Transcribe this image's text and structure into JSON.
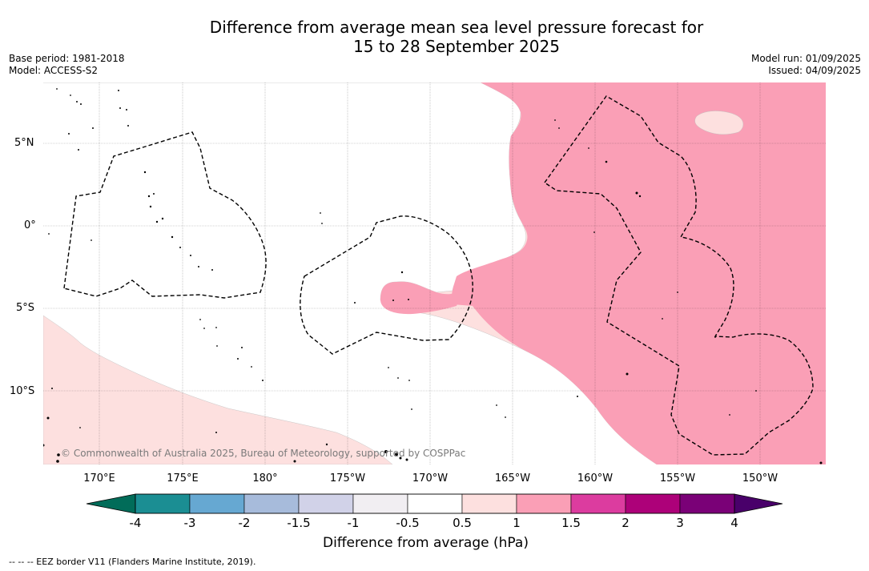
{
  "header": {
    "title_line1": "Difference from average mean sea level pressure forecast for",
    "title_line2": "15 to 28 September 2025",
    "base_period": "Base period: 1981-2018",
    "model": "Model: ACCESS-S2",
    "model_run": "Model run: 01/09/2025",
    "issued": "Issued: 04/09/2025"
  },
  "map": {
    "latitude_labels": [
      "5°N",
      "0°",
      "5°S",
      "10°S"
    ],
    "longitude_labels": [
      "170°E",
      "175°E",
      "180°",
      "175°W",
      "170°W",
      "165°W",
      "160°W",
      "155°W",
      "150°W"
    ],
    "copyright": "© Commonwealth of Australia 2025, Bureau of Meteorology, supported by COSPPac",
    "colors": {
      "anomaly_0.5_to_1": "#fde0df",
      "anomaly_1_to_1.5": "#fa9fb6",
      "eez_border": "#000000"
    }
  },
  "colorbar": {
    "title": "Difference from average (hPa)",
    "ticks": [
      "-4",
      "-3",
      "-2",
      "-1.5",
      "-1",
      "-0.5",
      "0.5",
      "1",
      "1.5",
      "2",
      "3",
      "4"
    ],
    "colors": [
      "#1b8e93",
      "#66a8d2",
      "#a7bbdb",
      "#d1d2e8",
      "#f1eef2",
      "#ffffff",
      "#fde0df",
      "#fa9fb6",
      "#dc3c9f",
      "#ad0179",
      "#7a0177"
    ],
    "under_color": "#016c59",
    "over_color": "#49006a"
  },
  "footer": {
    "legend": "--  --  -- EEZ border V11 (Flanders Marine Institute, 2019)."
  }
}
